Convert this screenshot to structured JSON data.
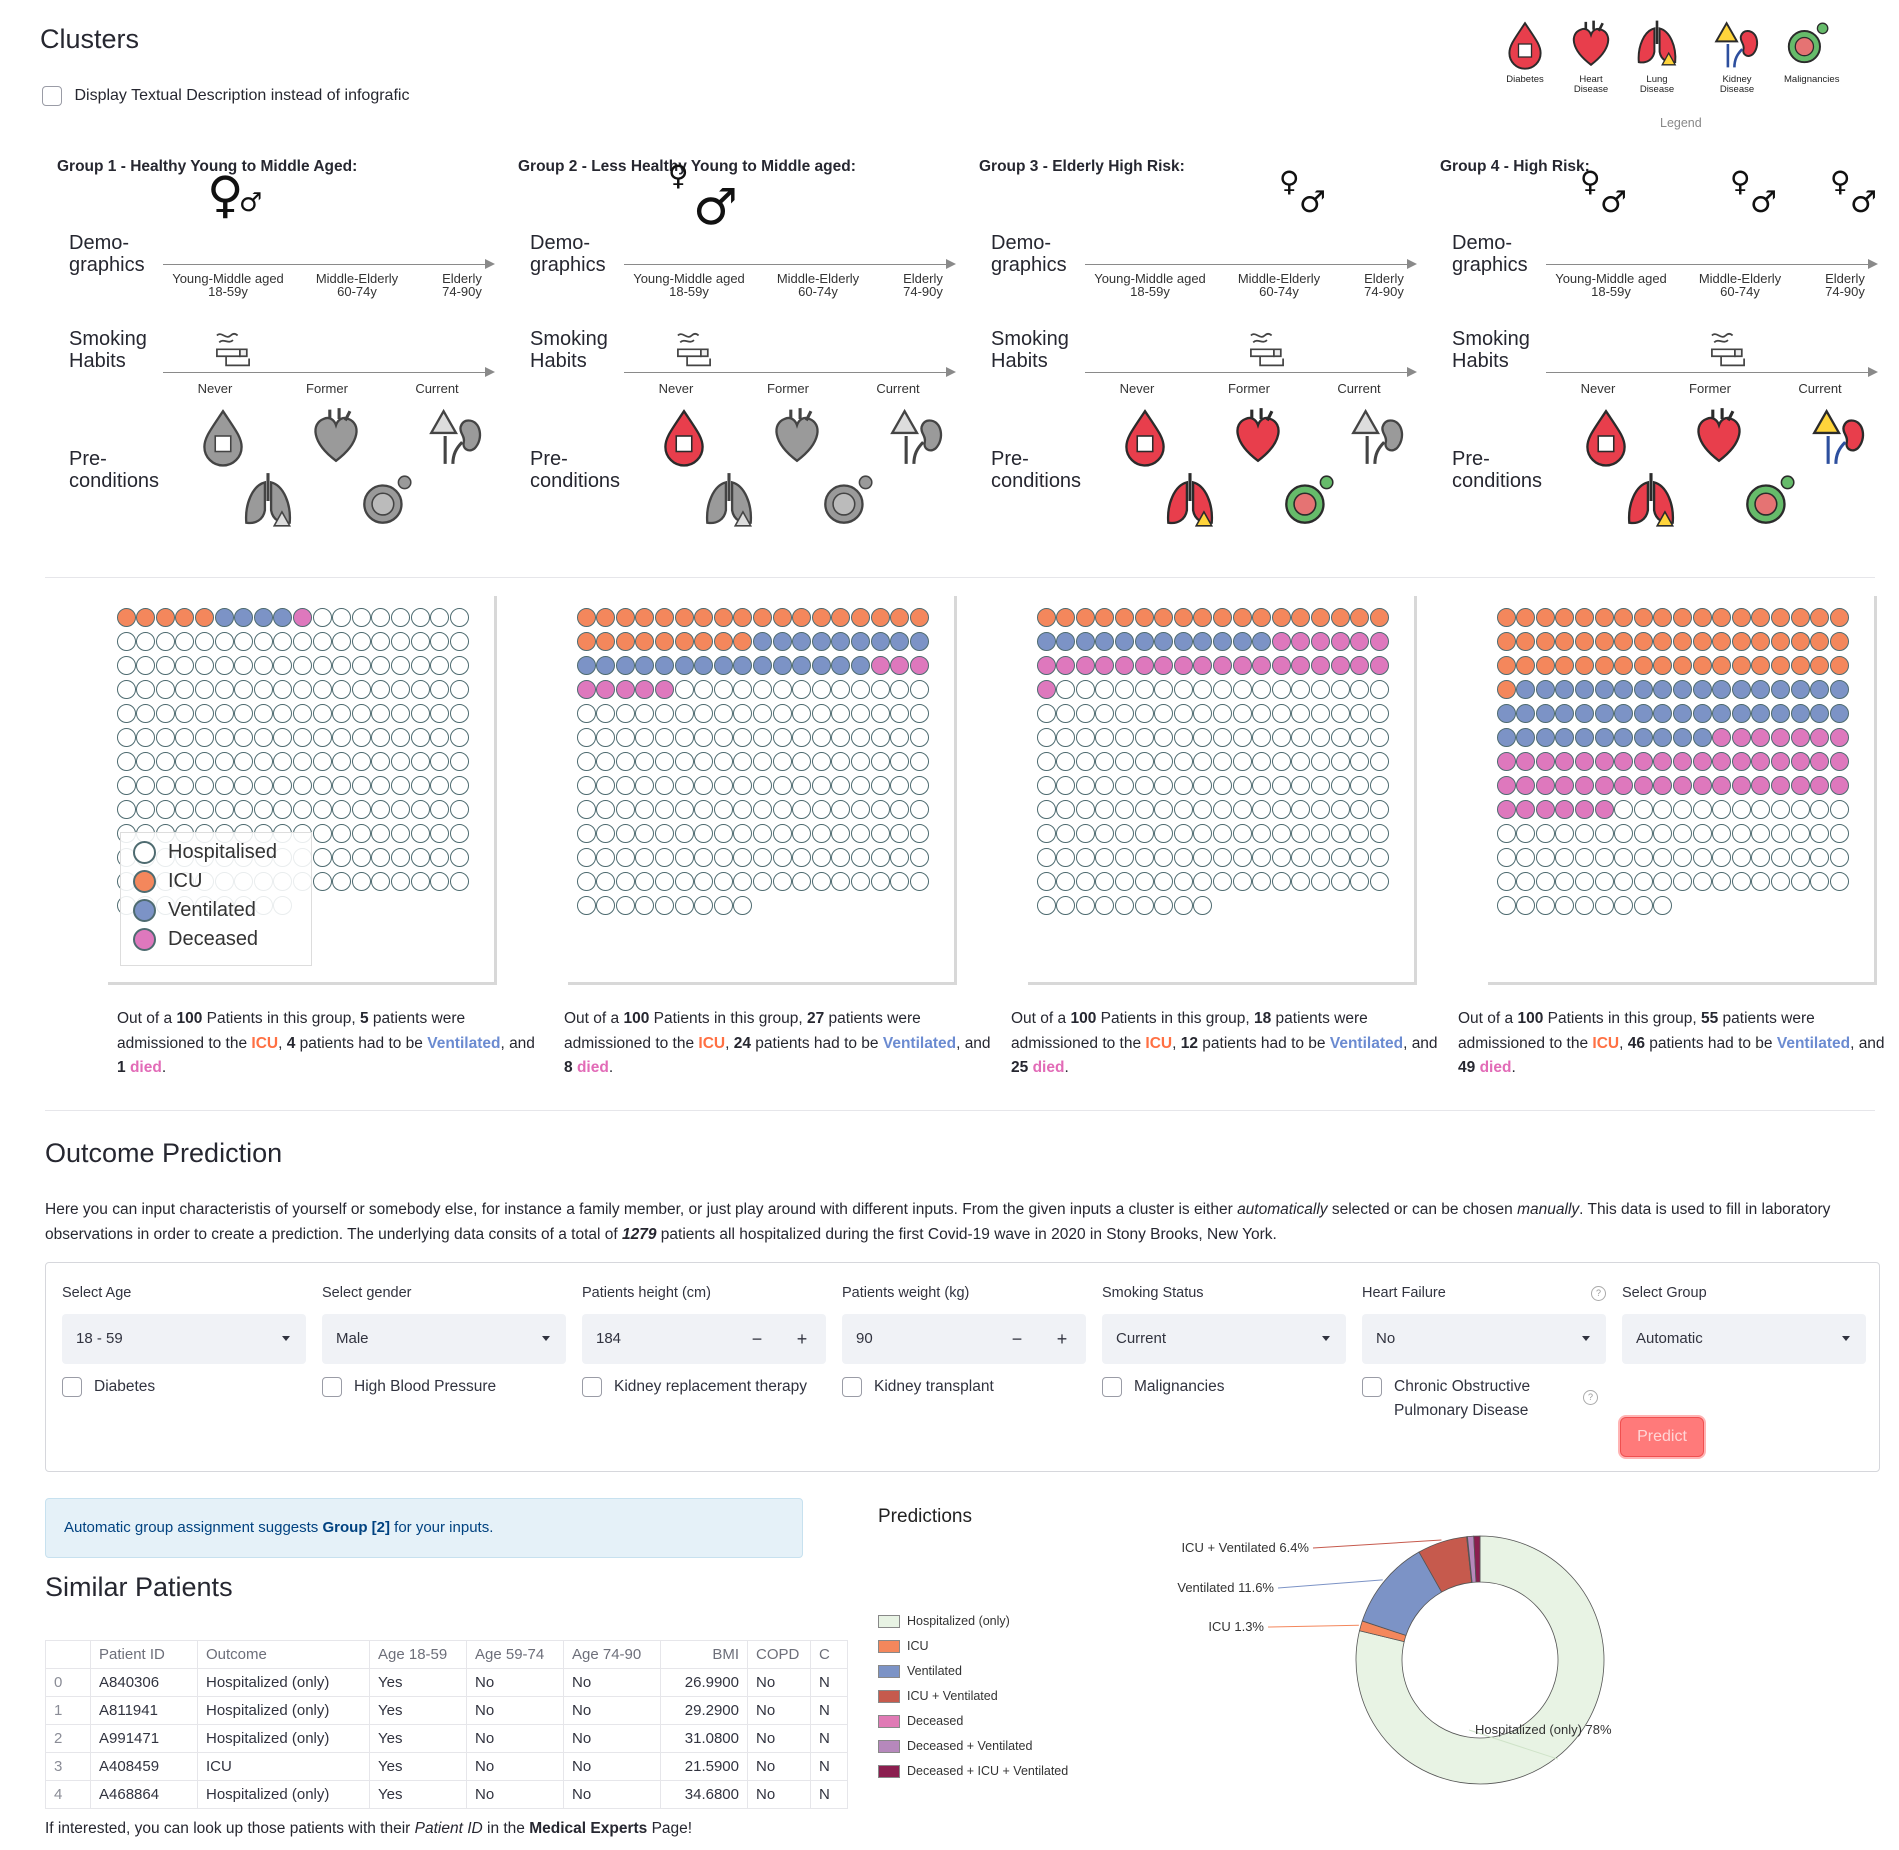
{
  "clusters": {
    "title": "Clusters",
    "toggle_label": "Display Textual Description instead of infografic",
    "legend": {
      "caption": "Legend",
      "items": [
        {
          "label": "Diabetes",
          "icon": "diabetes-icon"
        },
        {
          "label": "Heart Disease",
          "icon": "heart-icon"
        },
        {
          "label": "Lung Disease",
          "icon": "lung-icon"
        },
        {
          "label": "Kidney Disease",
          "icon": "kidney-icon"
        },
        {
          "label": "Malignancies",
          "icon": "virus-icon"
        }
      ]
    },
    "row_labels": {
      "demo": "Demo-\ngraphics",
      "smoking": "Smoking\nHabits",
      "pre": "Pre-\nconditions"
    },
    "age_ticks": [
      [
        "Young-Middle aged",
        "18-59y"
      ],
      [
        "Middle-Elderly",
        "60-74y"
      ],
      [
        "Elderly",
        "74-90y"
      ]
    ],
    "smoking_ticks": [
      "Never",
      "Former",
      "Current"
    ],
    "groups": [
      {
        "title": "Group 1 - Healthy Young to Middle Aged:",
        "icu": 5,
        "vent": 4,
        "dec": 1,
        "smoking_pos": 0,
        "colored": false,
        "desc": {
          "pre": "Out of a ",
          "total": "100",
          "mid1": " Patients in this group, ",
          "icu": "5",
          "mid2": " patients were admissioned to the ",
          "icu_w": "ICU",
          "mid3": ", ",
          "vent": "4",
          "mid4": " patients had to be ",
          "vent_w": "Ventilated",
          "mid5": ", and ",
          "dec": "1",
          "sp": " ",
          "dec_w": "died",
          "end": "."
        }
      },
      {
        "title": "Group 2 - Less Healthy Young to Middle aged:",
        "icu": 27,
        "vent": 24,
        "dec": 8,
        "smoking_pos": 0,
        "colored": false,
        "desc": {
          "pre": "Out of a ",
          "total": "100",
          "mid1": " Patients in this group, ",
          "icu": "27",
          "mid2": " patients were admissioned to the ",
          "icu_w": "ICU",
          "mid3": ", ",
          "vent": "24",
          "mid4": " patients had to be ",
          "vent_w": "Ventilated",
          "mid5": ", and ",
          "dec": "8",
          "sp": " ",
          "dec_w": "died",
          "end": "."
        }
      },
      {
        "title": "Group 3 - Elderly High Risk:",
        "icu": 18,
        "vent": 12,
        "dec": 25,
        "smoking_pos": 1,
        "colored": true,
        "desc": {
          "pre": "Out of a ",
          "total": "100",
          "mid1": " Patients in this group, ",
          "icu": "18",
          "mid2": " patients were admissioned to the ",
          "icu_w": "ICU",
          "mid3": ", ",
          "vent": "12",
          "mid4": " patients had to be ",
          "vent_w": "Ventilated",
          "mid5": ", and ",
          "dec": "25",
          "sp": " ",
          "dec_w": "died",
          "end": "."
        }
      },
      {
        "title": "Group 4 - High Risk:",
        "icu": 55,
        "vent": 46,
        "dec": 49,
        "smoking_pos": 1,
        "colored": true,
        "desc": {
          "pre": "Out of a ",
          "total": "100",
          "mid1": " Patients in this group, ",
          "icu": "55",
          "mid2": " patients were admissioned to the ",
          "icu_w": "ICU",
          "mid3": ", ",
          "vent": "46",
          "mid4": " patients had to be ",
          "vent_w": "Ventilated",
          "mid5": ", and ",
          "dec": "49",
          "sp": " ",
          "dec_w": "died",
          "end": "."
        }
      }
    ],
    "waffle_legend": [
      "Hospitalised",
      "ICU",
      "Ventilated",
      "Deceased"
    ],
    "colors": {
      "icu": "#f4875c",
      "vent": "#7c93c6",
      "dec": "#de78bd",
      "outline": "#4e6b70"
    }
  },
  "outcome": {
    "title": "Outcome Prediction",
    "intro": {
      "p1": "Here you can input characteristis of yourself or somebody else, for instance a family member, or just play around with different inputs. From the given inputs a cluster is either ",
      "em1": "automatically",
      "p2": " selected or can be chosen ",
      "em2": "manually",
      "p3": ". This data is used to fill in laboratory observations in order to create a prediction. The underlying data consits of a total of ",
      "count": "1279",
      "p4": " patients all hospitalized during the first Covid-19 wave in 2020 in Stony Brooks, New York."
    },
    "fields": {
      "age": {
        "label": "Select Age",
        "value": "18 - 59"
      },
      "gender": {
        "label": "Select gender",
        "value": "Male"
      },
      "height": {
        "label": "Patients height (cm)",
        "value": "184"
      },
      "weight": {
        "label": "Patients weight (kg)",
        "value": "90"
      },
      "smoking": {
        "label": "Smoking Status",
        "value": "Current"
      },
      "heart": {
        "label": "Heart Failure",
        "value": "No"
      },
      "group": {
        "label": "Select Group",
        "value": "Automatic"
      }
    },
    "stepper": {
      "minus": "−",
      "plus": "+"
    },
    "help_glyph": "?",
    "checkboxes": [
      "Diabetes",
      "High Blood Pressure",
      "Kidney replacement therapy",
      "Kidney transplant",
      "Malignancies",
      "Chronic Obstructive\nPulmonary Disease"
    ],
    "predict_label": "Predict",
    "info": {
      "pre": "Automatic group assignment suggests ",
      "group": "Group [2]",
      "post": " for your inputs."
    }
  },
  "similar": {
    "title": "Similar Patients",
    "columns": [
      "",
      "Patient ID",
      "Outcome",
      "Age 18-59",
      "Age 59-74",
      "Age 74-90",
      "BMI",
      "COPD",
      "C"
    ],
    "rows": [
      [
        "0",
        "A840306",
        "Hospitalized (only)",
        "Yes",
        "No",
        "No",
        "26.9900",
        "No",
        "N"
      ],
      [
        "1",
        "A811941",
        "Hospitalized (only)",
        "Yes",
        "No",
        "No",
        "29.2900",
        "No",
        "N"
      ],
      [
        "2",
        "A991471",
        "Hospitalized (only)",
        "Yes",
        "No",
        "No",
        "31.0800",
        "No",
        "N"
      ],
      [
        "3",
        "A408459",
        "ICU",
        "Yes",
        "No",
        "No",
        "21.5900",
        "No",
        "N"
      ],
      [
        "4",
        "A468864",
        "Hospitalized (only)",
        "Yes",
        "No",
        "No",
        "34.6800",
        "No",
        "N"
      ]
    ],
    "footer": {
      "pre": "If interested, you can look up those patients with their ",
      "em": "Patient ID",
      "mid": " in the ",
      "strong": "Medical Experts",
      "post": " Page!"
    }
  },
  "chart_data": {
    "type": "pie",
    "title": "Predictions",
    "hole": true,
    "categories": [
      "Hospitalized (only)",
      "ICU",
      "Ventilated",
      "ICU + Ventilated",
      "Deceased",
      "Deceased + Ventilated",
      "Deceased + ICU + Ventilated"
    ],
    "values": [
      78,
      1.3,
      11.6,
      6.4,
      0.1,
      0.8,
      0.8
    ],
    "colors": [
      "#e8f3e4",
      "#f4875c",
      "#7c93c6",
      "#c65a4d",
      "#e07ab5",
      "#b688bc",
      "#8b1e4f"
    ],
    "slice_labels": [
      {
        "text": "Hospitalized (only) 78%"
      },
      {
        "text": "ICU 1.3%"
      },
      {
        "text": "Ventilated 11.6%"
      },
      {
        "text": "ICU + Ventilated 6.4%"
      }
    ],
    "legend_position": "left"
  }
}
